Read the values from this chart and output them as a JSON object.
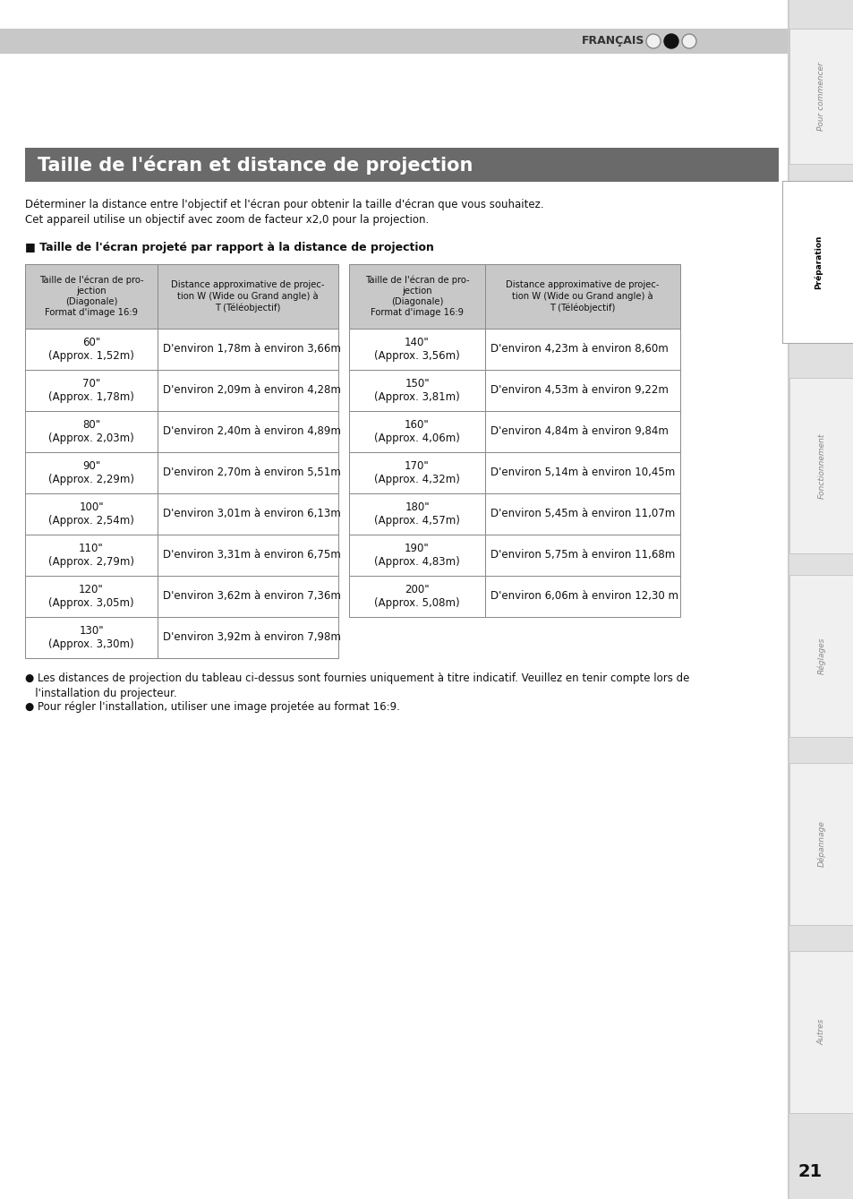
{
  "page_bg": "#ffffff",
  "header_bar_color": "#c8c8c8",
  "header_text": "FRANÇAIS",
  "title_bg": "#6a6a6a",
  "title_text": "Taille de l'écran et distance de projection",
  "subtitle": "■ Taille de l'écran projeté par rapport à la distance de projection",
  "intro_lines": [
    "Déterminer la distance entre l'objectif et l'écran pour obtenir la taille d'écran que vous souhaitez.",
    "Cet appareil utilise un objectif avec zoom de facteur x2,0 pour la projection."
  ],
  "table_header_bg": "#c8c8c8",
  "col1_header": "Taille de l'écran de pro-\njection\n(Diagonale)\nFormat d'image 16:9",
  "col2_header": "Distance approximative de projec-\ntion W (Wide ou Grand angle) à\nT (Téléobjectif)",
  "left_rows": [
    [
      "60\"\n(Approx. 1,52m)",
      "D'environ 1,78m à environ 3,66m"
    ],
    [
      "70\"\n(Approx. 1,78m)",
      "D'environ 2,09m à environ 4,28m"
    ],
    [
      "80\"\n(Approx. 2,03m)",
      "D'environ 2,40m à environ 4,89m"
    ],
    [
      "90\"\n(Approx. 2,29m)",
      "D'environ 2,70m à environ 5,51m"
    ],
    [
      "100\"\n(Approx. 2,54m)",
      "D'environ 3,01m à environ 6,13m"
    ],
    [
      "110\"\n(Approx. 2,79m)",
      "D'environ 3,31m à environ 6,75m"
    ],
    [
      "120\"\n(Approx. 3,05m)",
      "D'environ 3,62m à environ 7,36m"
    ],
    [
      "130\"\n(Approx. 3,30m)",
      "D'environ 3,92m à environ 7,98m"
    ]
  ],
  "right_rows": [
    [
      "140\"\n(Approx. 3,56m)",
      "D'environ 4,23m à environ 8,60m"
    ],
    [
      "150\"\n(Approx. 3,81m)",
      "D'environ 4,53m à environ 9,22m"
    ],
    [
      "160\"\n(Approx. 4,06m)",
      "D'environ 4,84m à environ 9,84m"
    ],
    [
      "170\"\n(Approx. 4,32m)",
      "D'environ 5,14m à environ 10,45m"
    ],
    [
      "180\"\n(Approx. 4,57m)",
      "D'environ 5,45m à environ 11,07m"
    ],
    [
      "190\"\n(Approx. 4,83m)",
      "D'environ 5,75m à environ 11,68m"
    ],
    [
      "200\"\n(Approx. 5,08m)",
      "D'environ 6,06m à environ 12,30 m"
    ]
  ],
  "footnotes": [
    "● Les distances de projection du tableau ci-dessus sont fournies uniquement à titre indicatif. Veuillez en tenir compte lors de\n   l'installation du projecteur.",
    "● Pour régler l'installation, utiliser une image projetée au format 16:9."
  ],
  "side_tabs": [
    "Pour commencer",
    "Préparation",
    "Fonctionnement",
    "Réglages",
    "Dépannage",
    "Autres"
  ],
  "active_tab_idx": 1,
  "page_number": "21",
  "tab_y_positions": [
    30,
    200,
    420,
    640,
    850,
    1060
  ],
  "tab_heights": [
    155,
    185,
    200,
    185,
    185,
    185
  ]
}
